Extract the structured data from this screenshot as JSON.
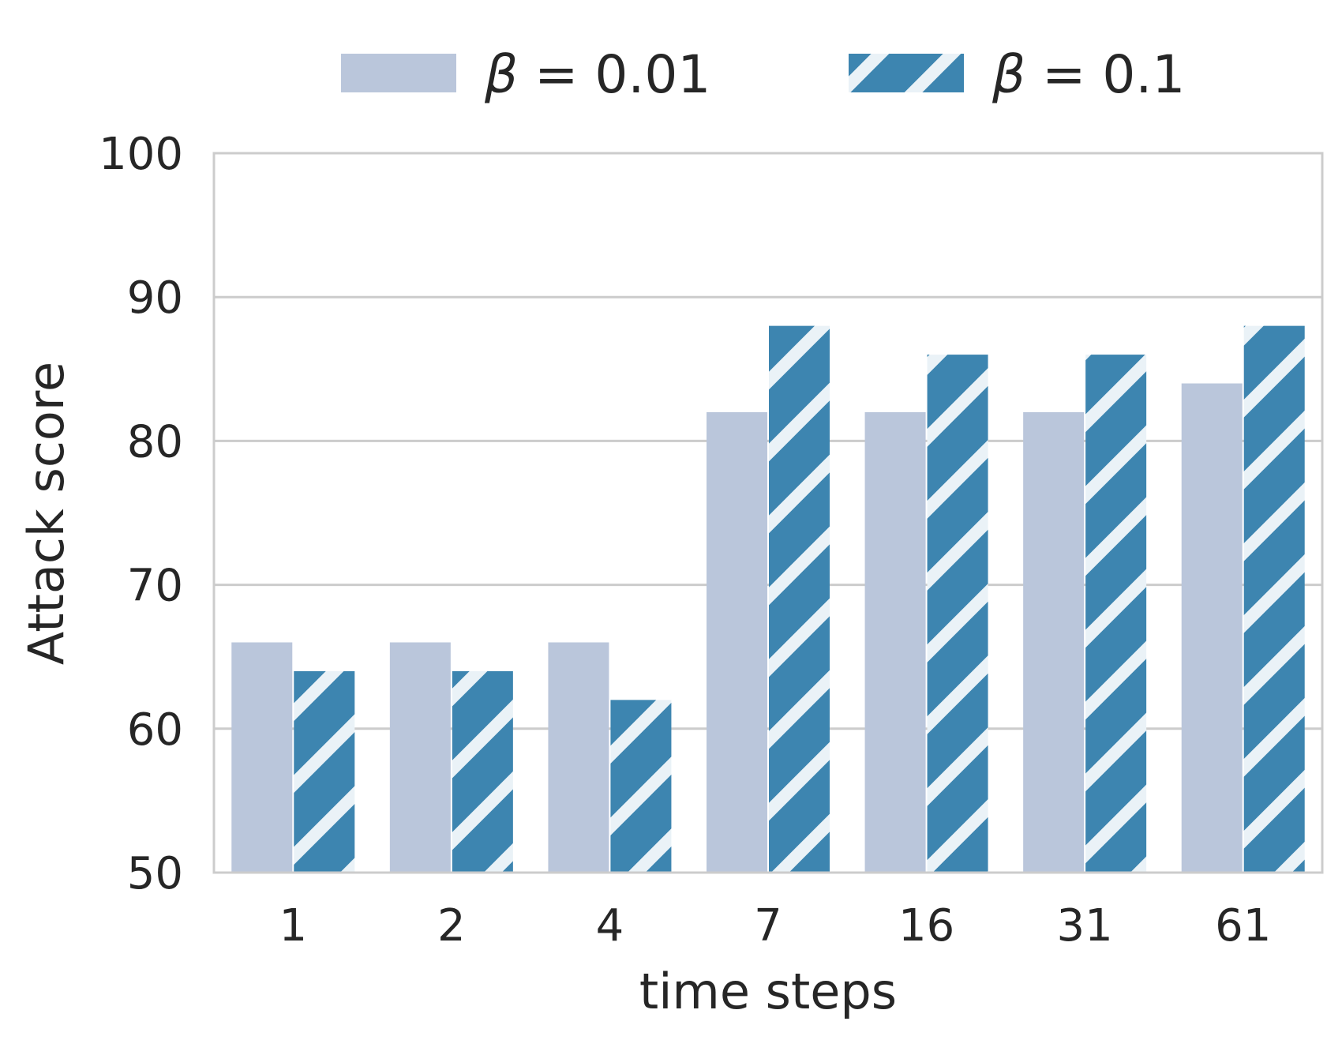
{
  "chart_data": {
    "type": "bar",
    "xlabel": "time steps",
    "ylabel": "Attack score",
    "categories": [
      "1",
      "2",
      "4",
      "7",
      "16",
      "31",
      "61"
    ],
    "ylim": [
      50,
      100
    ],
    "yticks": [
      "50",
      "60",
      "70",
      "80",
      "90",
      "100"
    ],
    "grid": "horizontal",
    "legend_position": "top-center",
    "series": [
      {
        "name_symbol": "β",
        "name_rest": " = 0.01",
        "values": [
          66,
          66,
          66,
          82,
          82,
          82,
          84
        ],
        "color": "#bac6db",
        "hatch": "none"
      },
      {
        "name_symbol": "β",
        "name_rest": " = 0.1",
        "values": [
          64,
          64,
          62,
          88,
          86,
          86,
          88
        ],
        "color": "#3d85b0",
        "hatch": "diagonal"
      }
    ]
  }
}
